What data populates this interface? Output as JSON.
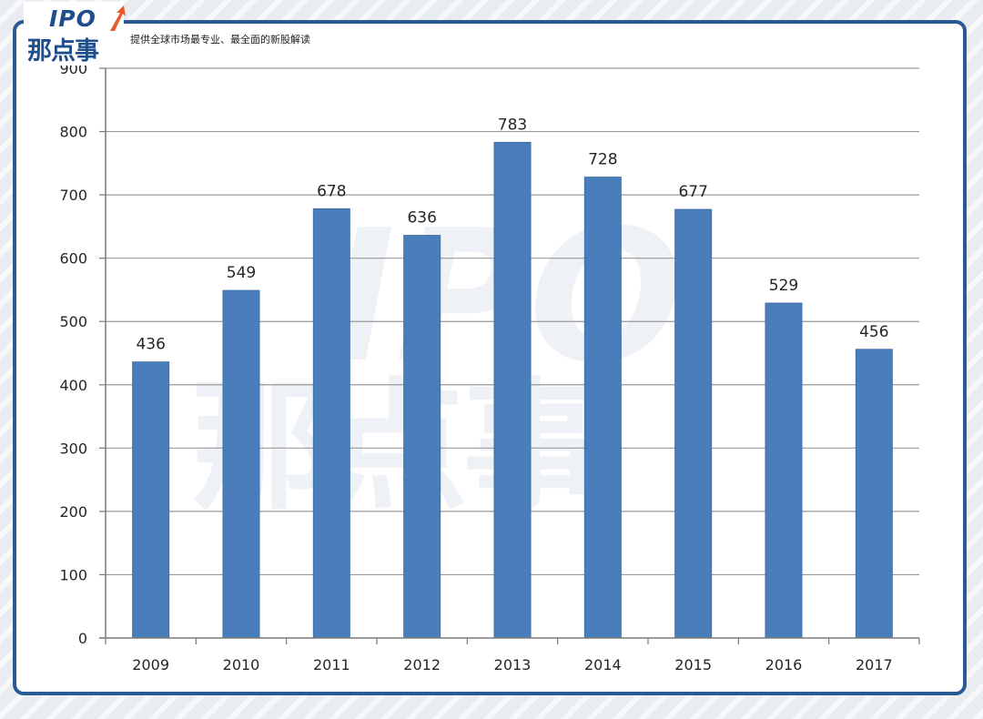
{
  "branding": {
    "logo_ipo": "IPO",
    "logo_cn": "那点事",
    "slogan": "提供全球市场最专业、最全面的新股解读",
    "brand_color": "#1e4f8c",
    "accent_color": "#e85a2c"
  },
  "chart_data": {
    "type": "bar",
    "categories": [
      "2009",
      "2010",
      "2011",
      "2012",
      "2013",
      "2014",
      "2015",
      "2016",
      "2017"
    ],
    "values": [
      436,
      549,
      678,
      636,
      783,
      728,
      677,
      529,
      456
    ],
    "data_labels": [
      "436",
      "549",
      "678",
      "636",
      "783",
      "728",
      "677",
      "529",
      "456"
    ],
    "y_ticks": [
      "0",
      "100",
      "200",
      "300",
      "400",
      "500",
      "600",
      "700",
      "800",
      "900"
    ],
    "ylim": [
      0,
      900
    ],
    "title": "",
    "xlabel": "",
    "ylabel": "",
    "grid": true,
    "legend": false,
    "bar_color": "#4a7ebb",
    "grid_color": "#9a9a9a"
  }
}
